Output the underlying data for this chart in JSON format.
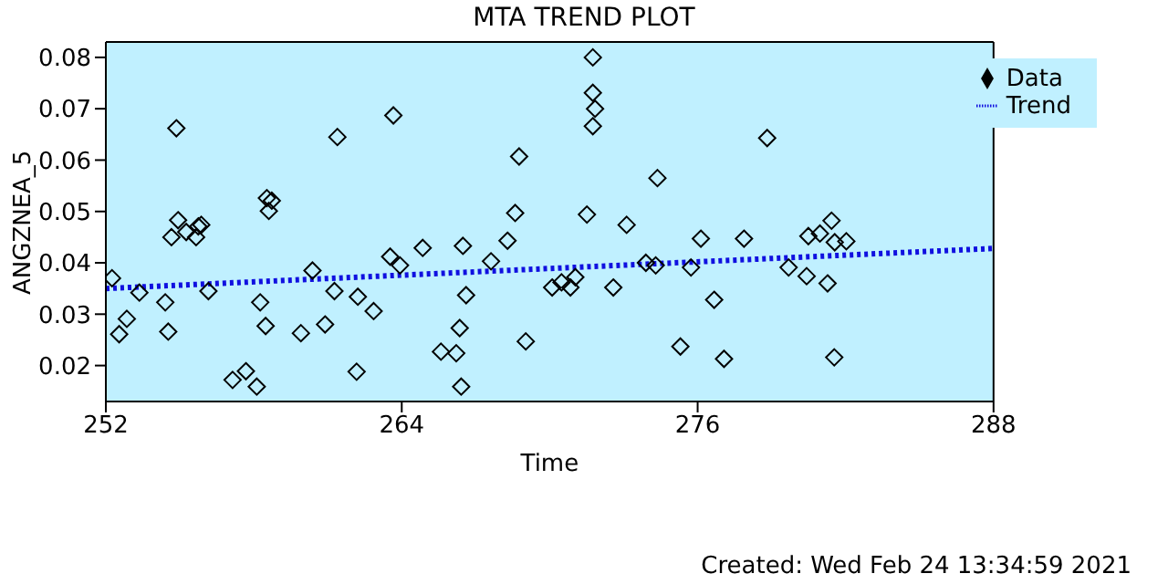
{
  "chart_data": {
    "type": "scatter",
    "title": "MTA TREND PLOT",
    "xlabel": "Time",
    "ylabel": "ANGZNEA_5",
    "annotations": [
      "Created: Wed Feb 24 13:34:59 2021"
    ],
    "xlim": [
      252,
      288
    ],
    "xticks": [
      252,
      264,
      276,
      288
    ],
    "ylim": [
      0.013,
      0.083
    ],
    "yticks": [
      0.02,
      0.03,
      0.04,
      0.05,
      0.06,
      0.07,
      0.08
    ],
    "grid": false,
    "legend": "top right",
    "series": [
      {
        "name": "Data",
        "color": "#000000",
        "marker": "diamond",
        "x": [
          252.25,
          252.54,
          252.85,
          253.36,
          254.41,
          254.53,
          254.66,
          254.86,
          254.93,
          255.26,
          255.66,
          255.75,
          255.87,
          256.16,
          257.14,
          257.68,
          258.12,
          258.26,
          258.48,
          258.53,
          258.73,
          258.61,
          259.91,
          260.38,
          260.89,
          261.27,
          261.39,
          262.17,
          262.22,
          262.86,
          263.66,
          263.53,
          263.93,
          264.85,
          265.59,
          266.21,
          266.35,
          266.41,
          266.48,
          266.61,
          267.62,
          268.29,
          268.6,
          268.76,
          269.03,
          270.1,
          270.48,
          270.84,
          271.04,
          271.51,
          271.75,
          271.75,
          271.84,
          271.75,
          272.58,
          273.12,
          273.9,
          274.3,
          274.37,
          275.3,
          275.73,
          276.13,
          276.67,
          277.07,
          277.88,
          278.82,
          279.69,
          280.42,
          280.49,
          280.96,
          281.27,
          281.43,
          281.54,
          281.56,
          282.03
        ],
        "values": [
          0.037,
          0.0261,
          0.0291,
          0.0342,
          0.0323,
          0.0266,
          0.045,
          0.0662,
          0.0483,
          0.046,
          0.045,
          0.0471,
          0.0474,
          0.0345,
          0.0172,
          0.0189,
          0.0159,
          0.0323,
          0.0277,
          0.0526,
          0.0521,
          0.0501,
          0.0263,
          0.0385,
          0.028,
          0.0345,
          0.0645,
          0.0188,
          0.0334,
          0.0306,
          0.0687,
          0.0412,
          0.0395,
          0.0429,
          0.0227,
          0.0224,
          0.0273,
          0.0159,
          0.0433,
          0.0337,
          0.0403,
          0.0443,
          0.0497,
          0.0607,
          0.0247,
          0.0352,
          0.0362,
          0.0352,
          0.0372,
          0.0494,
          0.08,
          0.0731,
          0.07,
          0.0666,
          0.0352,
          0.0474,
          0.04,
          0.0395,
          0.0565,
          0.0237,
          0.0391,
          0.0447,
          0.0328,
          0.0213,
          0.0447,
          0.0643,
          0.0391,
          0.0374,
          0.0452,
          0.0457,
          0.036,
          0.0482,
          0.0216,
          0.044,
          0.0442
        ]
      },
      {
        "name": "Trend",
        "type": "line",
        "color": "#1010e0",
        "line_style": "dotted",
        "x": [
          252,
          288
        ],
        "values": [
          0.035,
          0.0428
        ]
      }
    ]
  }
}
